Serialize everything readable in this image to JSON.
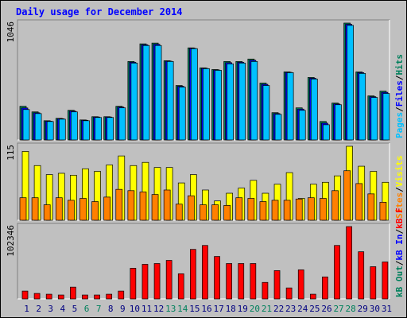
{
  "chart_data": [
    {
      "type": "bar",
      "title": "Daily usage for December 2014",
      "legend_separator": "/",
      "ylim": [
        0,
        1046
      ],
      "yticks": [
        1046
      ],
      "series": [
        {
          "name": "Hits",
          "color": "#00805c",
          "values": [
            301,
            251,
            172,
            193,
            265,
            179,
            208,
            208,
            301,
            702,
            860,
            867,
            709,
            487,
            824,
            645,
            630,
            702,
            702,
            724,
            509,
            244,
            609,
            287,
            559,
            165,
            330,
            1046,
            609,
            394,
            437
          ]
        },
        {
          "name": "Files",
          "color": "#0000ff",
          "values": [
            286,
            243,
            168,
            190,
            258,
            176,
            205,
            205,
            294,
            695,
            852,
            856,
            705,
            480,
            820,
            641,
            626,
            691,
            695,
            713,
            498,
            236,
            605,
            276,
            552,
            150,
            322,
            1035,
            602,
            387,
            426
          ]
        },
        {
          "name": "Pages",
          "color": "#00c0ff",
          "values": [
            272,
            236,
            165,
            186,
            251,
            172,
            201,
            201,
            287,
            688,
            845,
            845,
            702,
            473,
            817,
            638,
            623,
            681,
            688,
            702,
            487,
            229,
            602,
            265,
            545,
            136,
            315,
            1025,
            595,
            380,
            416
          ]
        }
      ]
    },
    {
      "type": "bar",
      "ylim": [
        0,
        115
      ],
      "yticks": [
        115
      ],
      "series": [
        {
          "name": "Visits",
          "color": "#ffff00",
          "values": [
            107,
            85,
            71,
            73,
            70,
            80,
            76,
            86,
            100,
            85,
            90,
            82,
            82,
            58,
            71,
            47,
            30,
            42,
            50,
            62,
            42,
            56,
            74,
            34,
            56,
            59,
            69,
            115,
            84,
            76,
            59
          ]
        },
        {
          "name": "Sites",
          "color": "#ff8000",
          "values": [
            35,
            35,
            24,
            35,
            31,
            34,
            29,
            36,
            48,
            46,
            44,
            40,
            47,
            25,
            38,
            24,
            24,
            23,
            35,
            34,
            29,
            31,
            31,
            33,
            35,
            34,
            46,
            77,
            57,
            41,
            28
          ]
        }
      ]
    },
    {
      "type": "bar",
      "categories": [
        "1",
        "2",
        "3",
        "4",
        "5",
        "6",
        "7",
        "8",
        "9",
        "10",
        "11",
        "12",
        "13",
        "14",
        "15",
        "16",
        "17",
        "18",
        "19",
        "20",
        "21",
        "22",
        "23",
        "24",
        "25",
        "26",
        "27",
        "28",
        "29",
        "30",
        "31"
      ],
      "label_colors": [
        "#000080",
        "#000080",
        "#000080",
        "#000080",
        "#000080",
        "#00805c",
        "#00805c",
        "#000080",
        "#000080",
        "#000080",
        "#000080",
        "#000080",
        "#00805c",
        "#00805c",
        "#000080",
        "#000080",
        "#000080",
        "#000080",
        "#000080",
        "#00805c",
        "#00805c",
        "#000080",
        "#000080",
        "#000080",
        "#000080",
        "#000080",
        "#00805c",
        "#00805c",
        "#000080",
        "#000080",
        "#000080"
      ],
      "ylim": [
        0,
        102346
      ],
      "yticks": [
        102346
      ],
      "series": [
        {
          "name": "kB F",
          "color": "#ff0000",
          "values": [
            11125,
            7787,
            6675,
            5562,
            16687,
            5562,
            5562,
            6675,
            11125,
            43386,
            48948,
            50061,
            54511,
            35599,
            70085,
            75647,
            60073,
            50061,
            50061,
            50061,
            23362,
            40049,
            15575,
            41161,
            6675,
            31149,
            75647,
            102346,
            66747,
            45611,
            52285
          ]
        },
        {
          "name": "kB In",
          "color": "#0000ff",
          "values": [
            0,
            0,
            0,
            0,
            0,
            0,
            0,
            0,
            0,
            0,
            0,
            0,
            0,
            0,
            0,
            0,
            0,
            0,
            0,
            0,
            0,
            0,
            0,
            0,
            0,
            0,
            0,
            0,
            0,
            0,
            0
          ]
        },
        {
          "name": "kB Out",
          "color": "#00805c",
          "values": [
            0,
            0,
            0,
            0,
            0,
            0,
            0,
            0,
            0,
            0,
            0,
            0,
            0,
            0,
            0,
            0,
            0,
            0,
            0,
            0,
            0,
            0,
            0,
            0,
            0,
            0,
            0,
            0,
            0,
            0,
            0
          ]
        }
      ]
    }
  ]
}
